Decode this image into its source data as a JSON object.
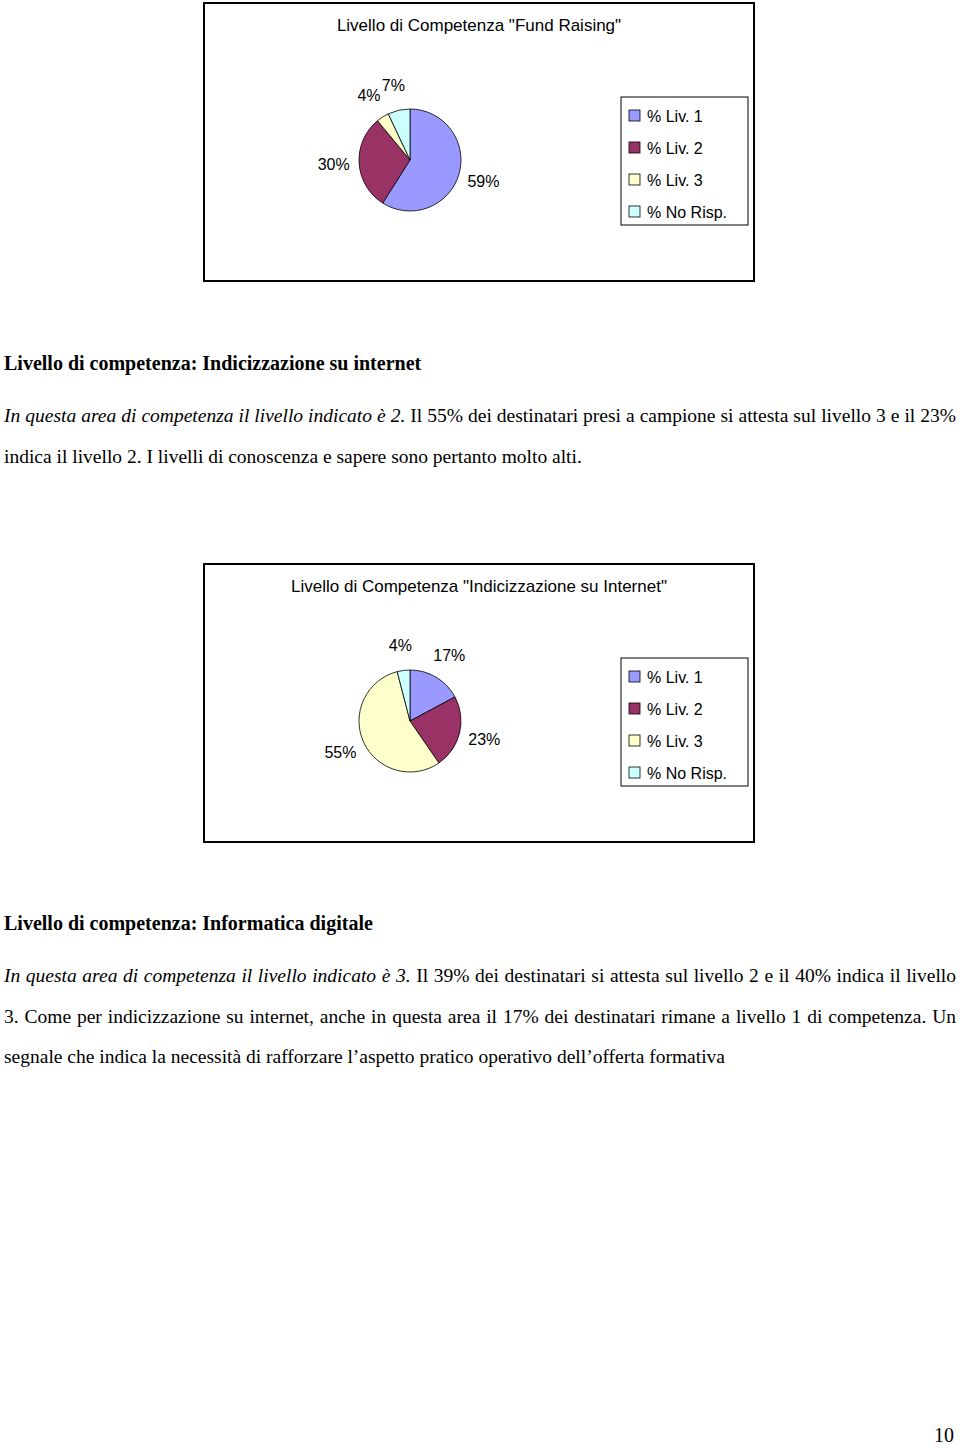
{
  "chart_data": [
    {
      "type": "pie",
      "title": "Livello di Competenza \"Fund Raising\"",
      "categories": [
        "% Liv. 1",
        "% Liv. 2",
        "% Liv. 3",
        "% No Risp."
      ],
      "values": [
        59,
        30,
        4,
        7
      ],
      "value_labels": [
        "59%",
        "30%",
        "4%",
        "7%"
      ],
      "colors": [
        "#9999ff",
        "#993366",
        "#ffffcc",
        "#ccffff"
      ],
      "data_labels": true,
      "legend": "right"
    },
    {
      "type": "pie",
      "title": "Livello di Competenza \"Indicizzazione su Internet\"",
      "categories": [
        "% Liv. 1",
        "% Liv. 2",
        "% Liv. 3",
        "% No Risp."
      ],
      "values": [
        17,
        23,
        55,
        4
      ],
      "value_labels": [
        "17%",
        "23%",
        "55%",
        "4%"
      ],
      "colors": [
        "#9999ff",
        "#993366",
        "#ffffcc",
        "#ccffff"
      ],
      "data_labels": true,
      "legend": "right"
    }
  ],
  "document": {
    "sections": [
      {
        "heading": "Livello di competenza: Indicizzazione su internet",
        "intro": "In questa area di competenza il livello indicato è 2.",
        "body": "Il 55% dei destinatari presi a campione si attesta sul livello 3 e il 23% indica il livello 2. I livelli di conoscenza e sapere sono pertanto molto alti."
      },
      {
        "heading": "Livello di competenza: Informatica digitale",
        "intro": "In questa area di competenza il livello indicato è 3.",
        "body": "Il 39% dei destinatari si attesta sul livello 2 e il 40% indica il livello 3. Come per indicizzazione su internet, anche in questa area il 17% dei destinatari rimane a livello 1 di competenza. Un segnale che indica la necessità di rafforzare l’aspetto pratico operativo dell’offerta formativa"
      }
    ],
    "page_number": "10"
  }
}
